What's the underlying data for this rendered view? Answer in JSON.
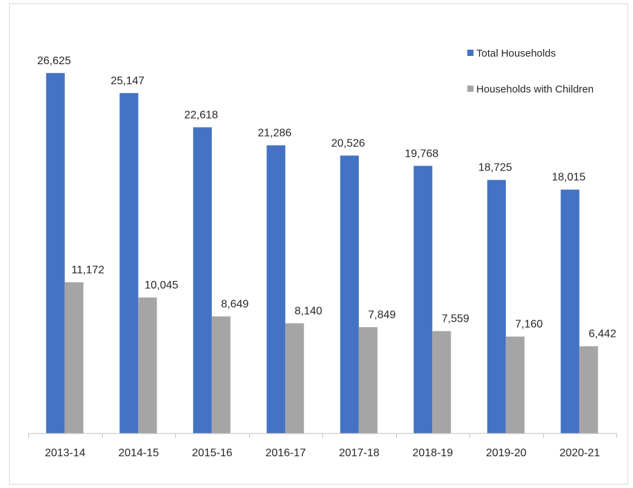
{
  "chart_data": {
    "type": "bar",
    "title": "",
    "xlabel": "",
    "ylabel": "",
    "categories": [
      "2013-14",
      "2014-15",
      "2015-16",
      "2016-17",
      "2017-18",
      "2018-19",
      "2019-20",
      "2020-21"
    ],
    "series": [
      {
        "name": "Total Households",
        "color": "#4472c4",
        "values": [
          26625,
          25147,
          22618,
          21286,
          20526,
          19768,
          18725,
          18015
        ],
        "labels": [
          "26,625",
          "25,147",
          "22,618",
          "21,286",
          "20,526",
          "19,768",
          "18,725",
          "18,015"
        ]
      },
      {
        "name": "Households with Children",
        "color": "#a5a5a5",
        "values": [
          11172,
          10045,
          8649,
          8140,
          7849,
          7559,
          7160,
          6442
        ],
        "labels": [
          "11,172",
          "10,045",
          "8,649",
          "8,140",
          "7,849",
          "7,559",
          "7,160",
          "6,442"
        ]
      }
    ],
    "ylim": [
      0,
      28500
    ],
    "grid": false,
    "legend_position": "top-right",
    "axis_color": "#bfbfbf",
    "label_color": "#262626"
  }
}
